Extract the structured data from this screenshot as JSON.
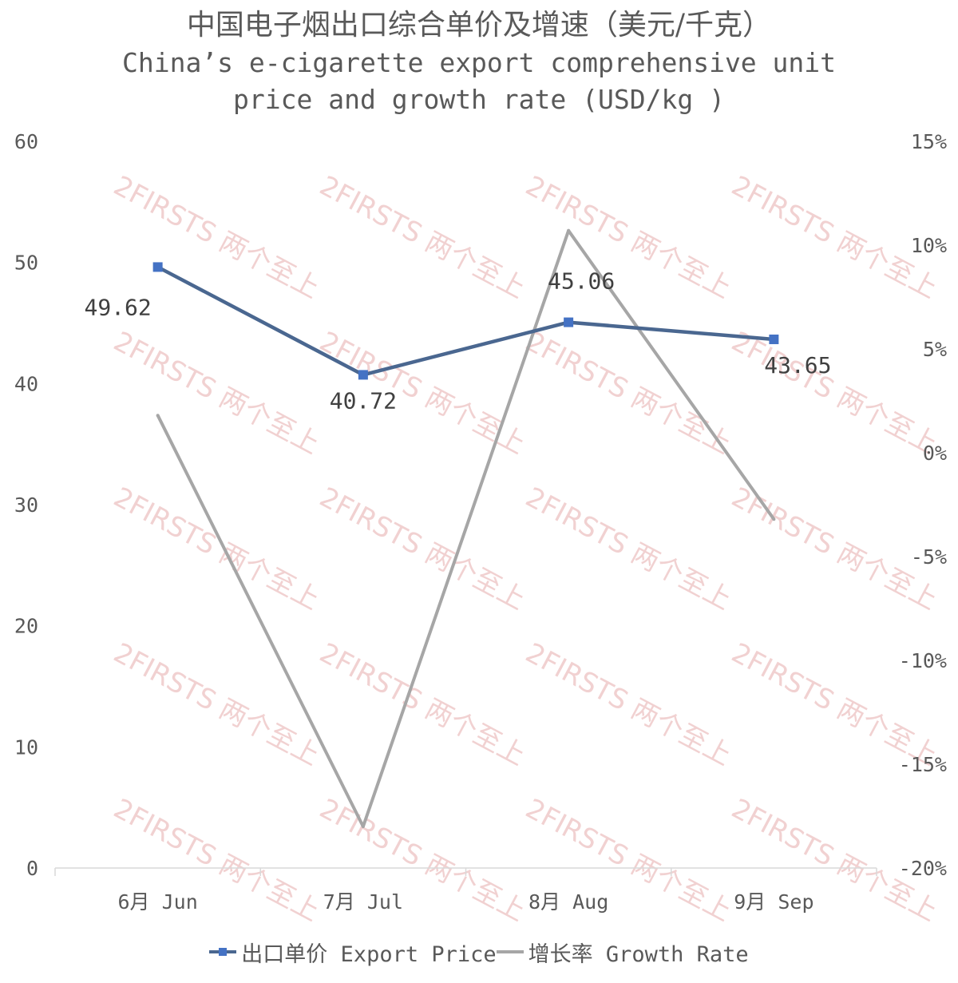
{
  "title_cn": "中国电子烟出口综合单价及增速（美元/千克）",
  "title_en": "China’s e-cigarette export comprehensive unit price and growth rate (USD/kg )",
  "watermark": "2FIRSTS 两个至上",
  "chart_data": {
    "type": "line",
    "categories": [
      "6月 Jun",
      "7月 Jul",
      "8月 Aug",
      "9月 Sep"
    ],
    "series": [
      {
        "name": "出口单价 Export Price",
        "axis": "left",
        "color": "#4472c4",
        "line_color": "#4a6790",
        "marker": "square",
        "values": [
          49.62,
          40.72,
          45.06,
          43.65
        ],
        "data_labels": [
          "49.62",
          "40.72",
          "45.06",
          "43.65"
        ]
      },
      {
        "name": "增长率 Growth Rate",
        "axis": "right",
        "color": "#a6a6a6",
        "values": [
          1.8,
          -18.0,
          10.7,
          -3.2
        ]
      }
    ],
    "y_left": {
      "min": 0,
      "max": 60,
      "ticks": [
        0,
        10,
        20,
        30,
        40,
        50,
        60
      ],
      "tick_labels": [
        "0",
        "10",
        "20",
        "30",
        "40",
        "50",
        "60"
      ]
    },
    "y_right": {
      "min": -20,
      "max": 15,
      "ticks": [
        -20,
        -15,
        -10,
        -5,
        0,
        5,
        10,
        15
      ],
      "tick_labels": [
        "-20%",
        "-15%",
        "-10%",
        "-5%",
        "0%",
        "5%",
        "10%",
        "15%"
      ]
    },
    "grid": false,
    "legend_position": "bottom"
  }
}
